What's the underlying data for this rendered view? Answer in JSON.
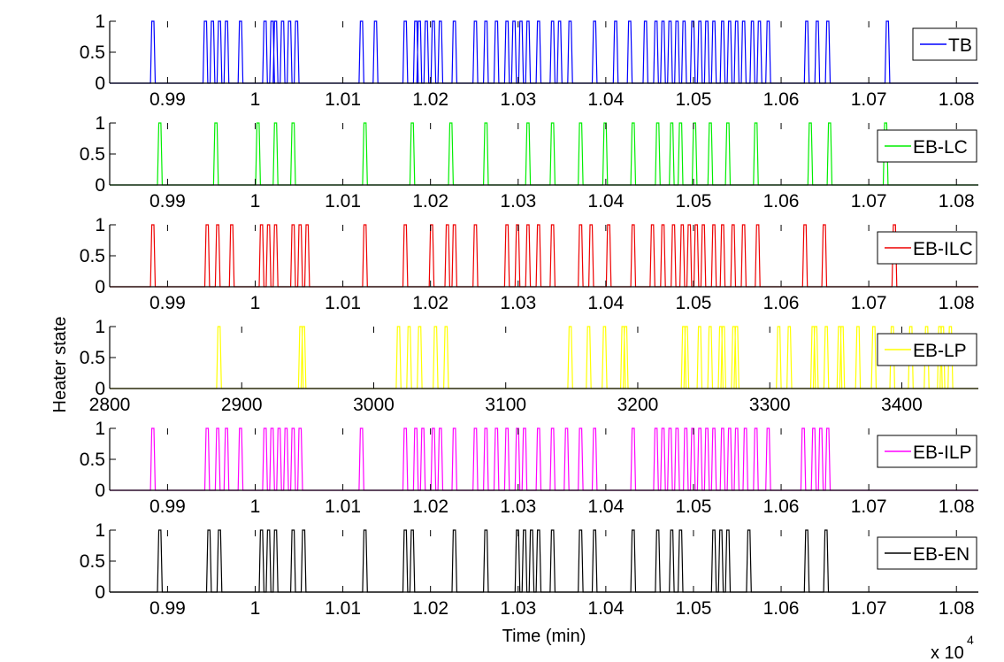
{
  "figure": {
    "ylabel": "Heater state",
    "xlabel": "Time (min)",
    "xexp_base": "x 10",
    "xexp_power": "4"
  },
  "chart_data": [
    {
      "type": "line",
      "name": "TB",
      "color": "#0000ff",
      "xlim": [
        9.834,
        10.825
      ],
      "ylim": [
        0,
        1
      ],
      "x_scale": "x 10^4",
      "xticks": [
        9.9,
        10.0,
        10.1,
        10.2,
        10.3,
        10.4,
        10.5,
        10.6,
        10.7,
        10.8
      ],
      "xtick_labels": [
        "0.99",
        "1",
        "1.01",
        "1.02",
        "1.03",
        "1.04",
        "1.05",
        "1.06",
        "1.07",
        "1.08"
      ],
      "yticks": [
        0,
        0.5,
        1
      ],
      "ytick_labels": [
        "0",
        "0.5",
        "1"
      ],
      "legend": "TB",
      "pulses_on": [
        9.882,
        9.942,
        9.95,
        9.958,
        9.966,
        9.982,
        10.01,
        10.018,
        10.022,
        10.03,
        10.038,
        10.046,
        10.12,
        10.136,
        10.17,
        10.182,
        10.186,
        10.194,
        10.202,
        10.21,
        10.226,
        10.25,
        10.262,
        10.274,
        10.286,
        10.294,
        10.302,
        10.31,
        10.322,
        10.338,
        10.346,
        10.358,
        10.386,
        10.41,
        10.426,
        10.444,
        10.456,
        10.464,
        10.472,
        10.48,
        10.488,
        10.498,
        10.506,
        10.514,
        10.522,
        10.532,
        10.54,
        10.548,
        10.556,
        10.566,
        10.574,
        10.584,
        10.628,
        10.64,
        10.652,
        10.72
      ]
    },
    {
      "type": "line",
      "name": "EB-LC",
      "color": "#00ee00",
      "xlim": [
        9.834,
        10.825
      ],
      "ylim": [
        0,
        1
      ],
      "x_scale": "x 10^4",
      "xticks": [
        9.9,
        10.0,
        10.1,
        10.2,
        10.3,
        10.4,
        10.5,
        10.6,
        10.7,
        10.8
      ],
      "xtick_labels": [
        "0.99",
        "1",
        "1.01",
        "1.02",
        "1.03",
        "1.04",
        "1.05",
        "1.06",
        "1.07",
        "1.08"
      ],
      "yticks": [
        0,
        0.5,
        1
      ],
      "ytick_labels": [
        "0",
        "0.5",
        "1"
      ],
      "legend": "EB-LC",
      "pulses_on": [
        9.89,
        9.954,
        10.002,
        10.022,
        10.042,
        10.124,
        10.178,
        10.222,
        10.262,
        10.31,
        10.338,
        10.37,
        10.398,
        10.43,
        10.458,
        10.474,
        10.484,
        10.5,
        10.518,
        10.538,
        10.57,
        10.632,
        10.654,
        10.718
      ]
    },
    {
      "type": "line",
      "name": "EB-ILC",
      "color": "#ee0000",
      "xlim": [
        9.834,
        10.825
      ],
      "ylim": [
        0,
        1
      ],
      "x_scale": "x 10^4",
      "xticks": [
        9.9,
        10.0,
        10.1,
        10.2,
        10.3,
        10.4,
        10.5,
        10.6,
        10.7,
        10.8
      ],
      "xtick_labels": [
        "0.99",
        "1",
        "1.01",
        "1.02",
        "1.03",
        "1.04",
        "1.05",
        "1.06",
        "1.07",
        "1.08"
      ],
      "yticks": [
        0,
        0.5,
        1
      ],
      "ytick_labels": [
        "0",
        "0.5",
        "1"
      ],
      "legend": "EB-ILC",
      "pulses_on": [
        9.882,
        9.944,
        9.956,
        9.972,
        10.006,
        10.014,
        10.022,
        10.042,
        10.05,
        10.058,
        10.124,
        10.17,
        10.2,
        10.218,
        10.226,
        10.25,
        10.286,
        10.298,
        10.31,
        10.322,
        10.338,
        10.37,
        10.382,
        10.402,
        10.43,
        10.452,
        10.464,
        10.476,
        10.486,
        10.494,
        10.502,
        10.51,
        10.522,
        10.532,
        10.544,
        10.556,
        10.572,
        10.626,
        10.648,
        10.728
      ]
    },
    {
      "type": "line",
      "name": "EB-LP",
      "color": "#ffff00",
      "xlim": [
        2800,
        3458
      ],
      "ylim": [
        0,
        1
      ],
      "xticks": [
        2800,
        2900,
        3000,
        3100,
        3200,
        3300,
        3400
      ],
      "xtick_labels": [
        "2800",
        "2900",
        "3000",
        "3100",
        "3200",
        "3300",
        "3400"
      ],
      "yticks": [
        0,
        0.5,
        1
      ],
      "ytick_labels": [
        "0",
        "0.5",
        "1"
      ],
      "legend": "EB-LP",
      "pulses_on": [
        2882,
        2944,
        2946,
        3018,
        3026,
        3034,
        3046,
        3054,
        3148,
        3162,
        3174,
        3188,
        3190,
        3234,
        3236,
        3246,
        3254,
        3262,
        3264,
        3272,
        3274,
        3306,
        3314,
        3332,
        3334,
        3342,
        3352,
        3354,
        3366,
        3378,
        3392,
        3406,
        3418,
        3428,
        3430,
        3436
      ]
    },
    {
      "type": "line",
      "name": "EB-ILP",
      "color": "#ff00ff",
      "xlim": [
        9.834,
        10.825
      ],
      "ylim": [
        0,
        1
      ],
      "x_scale": "x 10^4",
      "xticks": [
        9.9,
        10.0,
        10.1,
        10.2,
        10.3,
        10.4,
        10.5,
        10.6,
        10.7,
        10.8
      ],
      "xtick_labels": [
        "0.99",
        "1",
        "1.01",
        "1.02",
        "1.03",
        "1.04",
        "1.05",
        "1.06",
        "1.07",
        "1.08"
      ],
      "yticks": [
        0,
        0.5,
        1
      ],
      "ytick_labels": [
        "0",
        "0.5",
        "1"
      ],
      "legend": "EB-ILP",
      "pulses_on": [
        9.882,
        9.944,
        9.956,
        9.966,
        9.982,
        10.01,
        10.018,
        10.026,
        10.034,
        10.042,
        10.05,
        10.12,
        10.17,
        10.182,
        10.19,
        10.202,
        10.21,
        10.226,
        10.25,
        10.262,
        10.274,
        10.286,
        10.298,
        10.306,
        10.322,
        10.338,
        10.354,
        10.37,
        10.386,
        10.43,
        10.456,
        10.464,
        10.472,
        10.48,
        10.49,
        10.498,
        10.506,
        10.514,
        10.522,
        10.532,
        10.54,
        10.548,
        10.558,
        10.57,
        10.584,
        10.624,
        10.636,
        10.644,
        10.652
      ]
    },
    {
      "type": "line",
      "name": "EB-EN",
      "color": "#000000",
      "xlim": [
        9.834,
        10.825
      ],
      "ylim": [
        0,
        1
      ],
      "x_scale": "x 10^4",
      "xticks": [
        9.9,
        10.0,
        10.1,
        10.2,
        10.3,
        10.4,
        10.5,
        10.6,
        10.7,
        10.8
      ],
      "xtick_labels": [
        "0.99",
        "1",
        "1.01",
        "1.02",
        "1.03",
        "1.04",
        "1.05",
        "1.06",
        "1.07",
        "1.08"
      ],
      "yticks": [
        0,
        0.5,
        1
      ],
      "ytick_labels": [
        "0",
        "0.5",
        "1"
      ],
      "legend": "EB-EN",
      "pulses_on": [
        9.89,
        9.946,
        9.958,
        10.006,
        10.014,
        10.022,
        10.042,
        10.054,
        10.124,
        10.17,
        10.178,
        10.226,
        10.262,
        10.298,
        10.306,
        10.314,
        10.322,
        10.338,
        10.37,
        10.386,
        10.43,
        10.458,
        10.474,
        10.484,
        10.522,
        10.53,
        10.538,
        10.562,
        10.628,
        10.65
      ]
    }
  ]
}
